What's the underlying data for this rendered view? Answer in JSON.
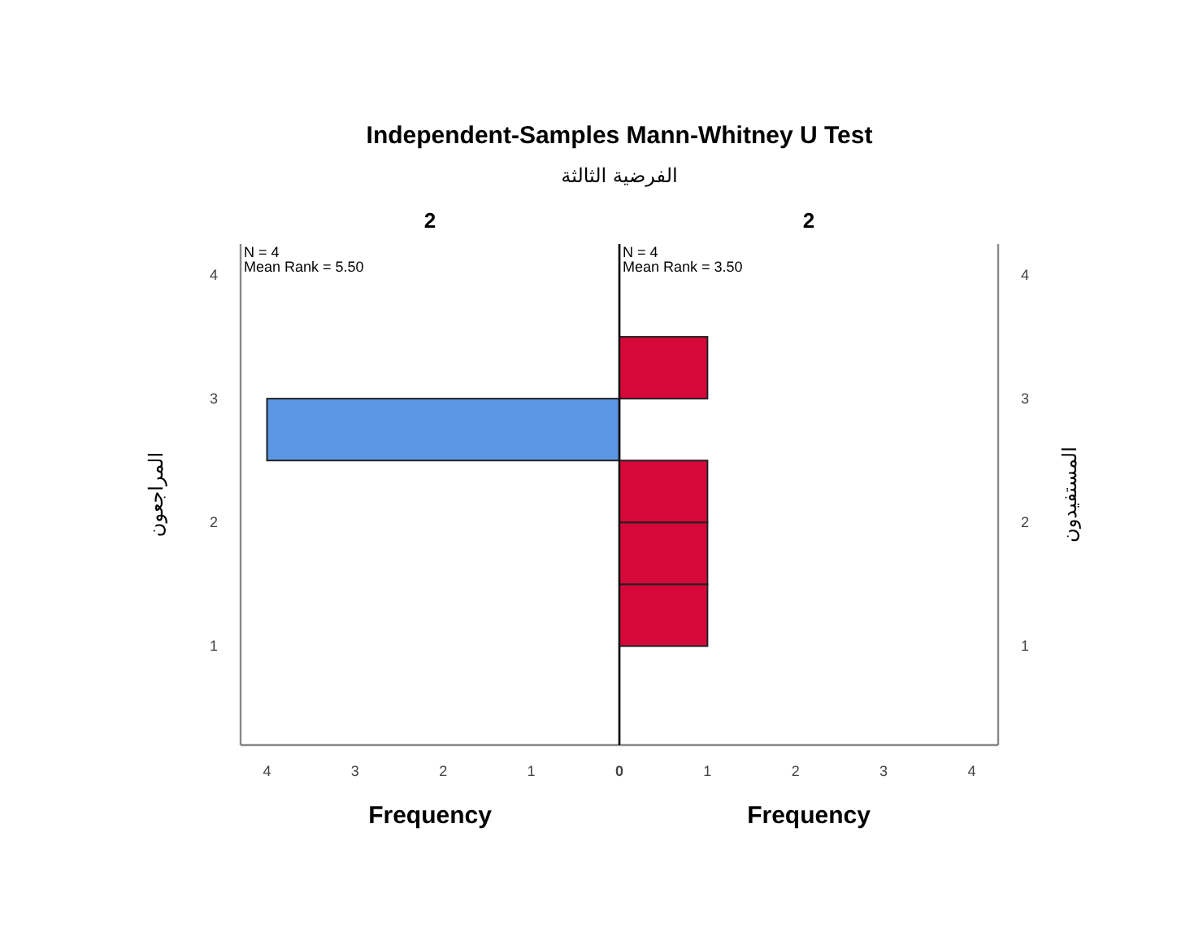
{
  "chart_data": [
    {
      "type": "histogram",
      "orientation": "horizontal",
      "title": "Independent-Samples Mann-Whitney U Test",
      "subtitle": "الفرضية الثالثة",
      "annotations": [
        "2",
        "N = 4",
        "Mean Rank = 5.50"
      ],
      "xlabel": "Frequency",
      "ylabel": "المراجعون",
      "bins": [
        2.5,
        3
      ],
      "values": [
        4
      ],
      "color": "#5a96e3",
      "xlim": [
        4.3,
        0
      ],
      "xticks": [
        4,
        3,
        2,
        1,
        0
      ],
      "ylim": [
        0.2,
        4.25
      ],
      "yticks": [
        1,
        2,
        3,
        4
      ]
    },
    {
      "type": "histogram",
      "orientation": "horizontal",
      "annotations": [
        "2",
        "N = 4",
        "Mean Rank = 3.50"
      ],
      "xlabel": "Frequency",
      "ylabel": "المستفيدون",
      "bins": [
        1,
        1.5,
        2,
        2.5,
        3,
        3.5
      ],
      "values": [
        1,
        1,
        1,
        0,
        1
      ],
      "color": "#d6083a",
      "xlim": [
        0,
        4.3
      ],
      "xticks": [
        1,
        2,
        3,
        4
      ],
      "ylim": [
        0.2,
        4.25
      ],
      "yticks": [
        1,
        2,
        3,
        4
      ]
    }
  ]
}
